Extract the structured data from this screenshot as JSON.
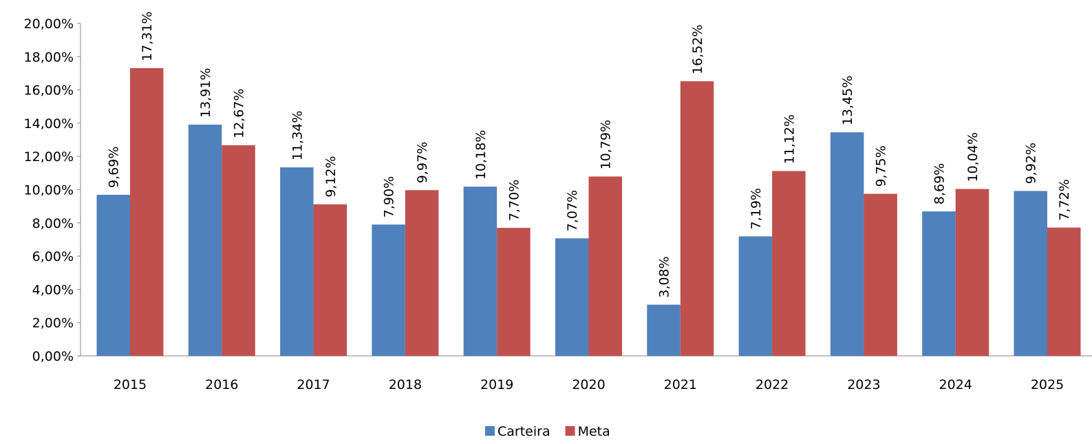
{
  "chart_data": {
    "type": "bar",
    "categories": [
      "2015",
      "2016",
      "2017",
      "2018",
      "2019",
      "2020",
      "2021",
      "2022",
      "2023",
      "2024",
      "2025"
    ],
    "series": [
      {
        "name": "Carteira",
        "color": "#4f81bd",
        "values": [
          9.69,
          13.91,
          11.34,
          7.9,
          10.18,
          7.07,
          3.08,
          7.19,
          13.45,
          8.69,
          9.92
        ],
        "value_labels": [
          "9,69%",
          "13,91%",
          "11,34%",
          "7,90%",
          "10,18%",
          "7,07%",
          "3,08%",
          "7,19%",
          "13,45%",
          "8,69%",
          "9,92%"
        ]
      },
      {
        "name": "Meta",
        "color": "#c0504d",
        "values": [
          17.31,
          12.67,
          9.12,
          9.97,
          7.7,
          10.79,
          16.52,
          11.12,
          9.75,
          10.04,
          7.72
        ],
        "value_labels": [
          "17,31%",
          "12,67%",
          "9,12%",
          "9,97%",
          "7,70%",
          "10,79%",
          "16,52%",
          "11,12%",
          "9,75%",
          "10,04%",
          "7,72%"
        ]
      }
    ],
    "ylim": [
      0,
      20
    ],
    "yticks": [
      {
        "value": 0,
        "label": "0,00%"
      },
      {
        "value": 2,
        "label": "2,00%"
      },
      {
        "value": 4,
        "label": "4,00%"
      },
      {
        "value": 6,
        "label": "6,00%"
      },
      {
        "value": 8,
        "label": "8,00%"
      },
      {
        "value": 10,
        "label": "10,00%"
      },
      {
        "value": 12,
        "label": "12,00%"
      },
      {
        "value": 14,
        "label": "14,00%"
      },
      {
        "value": 16,
        "label": "16,00%"
      },
      {
        "value": 18,
        "label": "18,00%"
      },
      {
        "value": 20,
        "label": "20,00%"
      }
    ],
    "grid": false,
    "legend": "bottom"
  }
}
